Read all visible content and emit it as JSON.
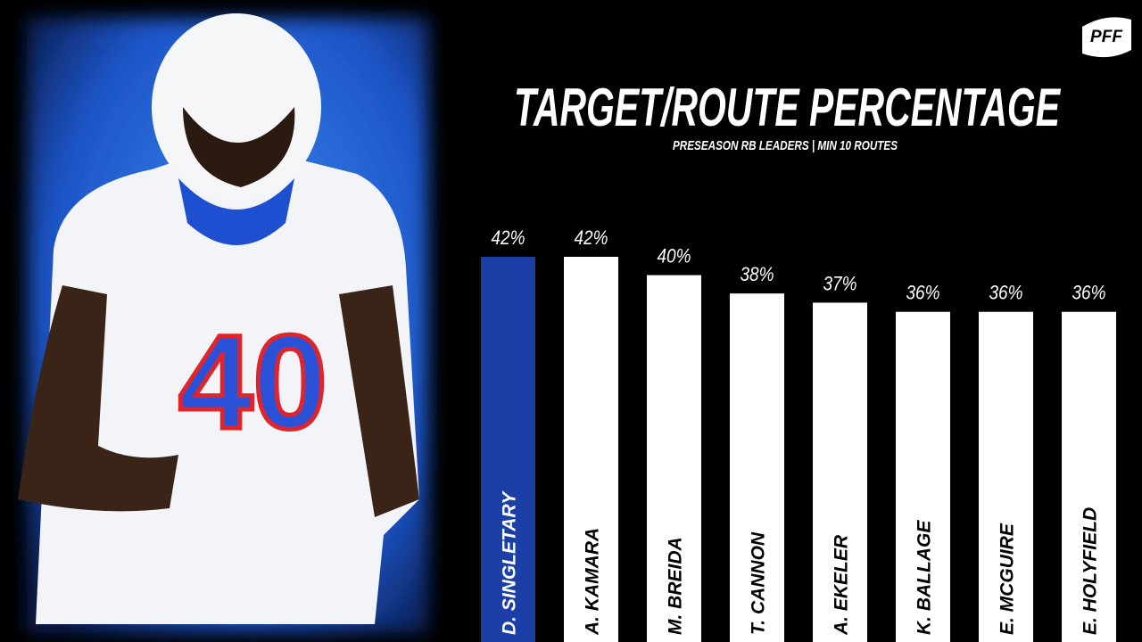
{
  "chart_data": {
    "type": "bar",
    "title": "TARGET/ROUTE PERCENTAGE",
    "subtitle": "PRESEASON RB LEADERS | MIN 10 ROUTES",
    "logo": "PFF",
    "categories": [
      "D. SINGLETARY",
      "A. KAMARA",
      "M. BREIDA",
      "T. CANNON",
      "A. EKELER",
      "K. BALLAGE",
      "E. MCGUIRE",
      "E. HOLYFIELD"
    ],
    "values": [
      42,
      42,
      40,
      38,
      37,
      36,
      36,
      36
    ],
    "value_labels": [
      "42%",
      "42%",
      "40%",
      "38%",
      "37%",
      "36%",
      "36%",
      "36%"
    ],
    "colors": [
      "#1b3fa6",
      "#ffffff",
      "#ffffff",
      "#ffffff",
      "#ffffff",
      "#ffffff",
      "#ffffff",
      "#ffffff"
    ],
    "ylim": [
      0,
      70
    ]
  }
}
